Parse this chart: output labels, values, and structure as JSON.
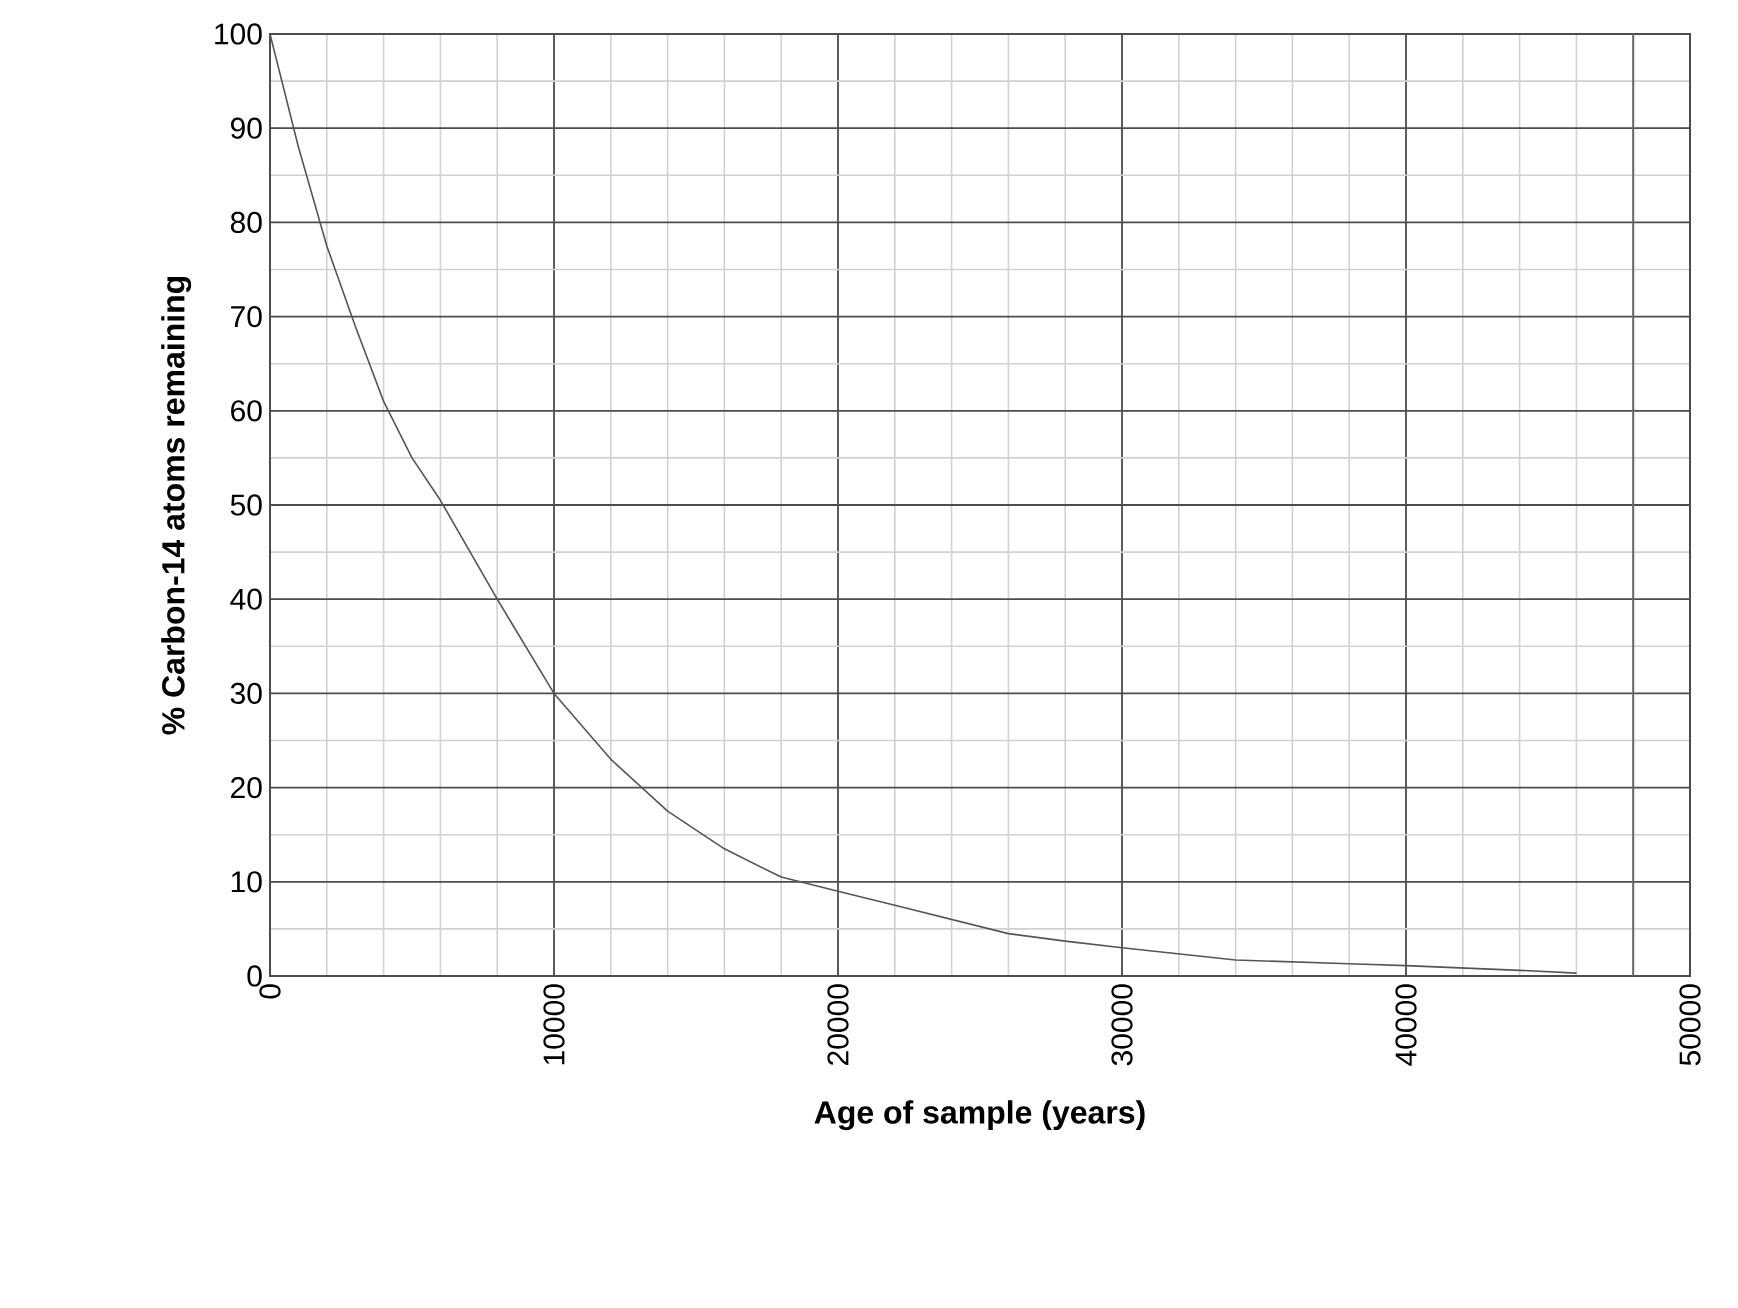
{
  "chart_data": {
    "type": "line",
    "xlabel": "Age of sample (years)",
    "ylabel": "% Carbon-14 atoms remaining",
    "x": [
      0,
      1000,
      2000,
      3000,
      4000,
      5000,
      6000,
      8000,
      10000,
      12000,
      14000,
      16000,
      18000,
      20000,
      22000,
      24000,
      26000,
      28000,
      30000,
      34000,
      38000,
      40000,
      44000,
      46000
    ],
    "series": [
      {
        "color": "#555555",
        "values": [
          100,
          88,
          77.5,
          69,
          61,
          55,
          50.5,
          40,
          30,
          23,
          17.5,
          13.5,
          10.5,
          9,
          7.5,
          6,
          4.5,
          3.7,
          3,
          1.7,
          1.3,
          1.1,
          0.6,
          0.3
        ]
      }
    ],
    "xlim": [
      0,
      50000
    ],
    "ylim": [
      0,
      100
    ],
    "xticks": [
      0,
      10000,
      20000,
      30000,
      40000,
      50000
    ],
    "yticks": [
      0,
      10,
      20,
      30,
      40,
      50,
      60,
      70,
      80,
      90,
      100
    ],
    "grid": true,
    "legend": false,
    "marker": "none",
    "line_style": "solid",
    "ref_lines": [
      {
        "axis": "x",
        "value": 48000,
        "color": "#666666"
      }
    ]
  }
}
